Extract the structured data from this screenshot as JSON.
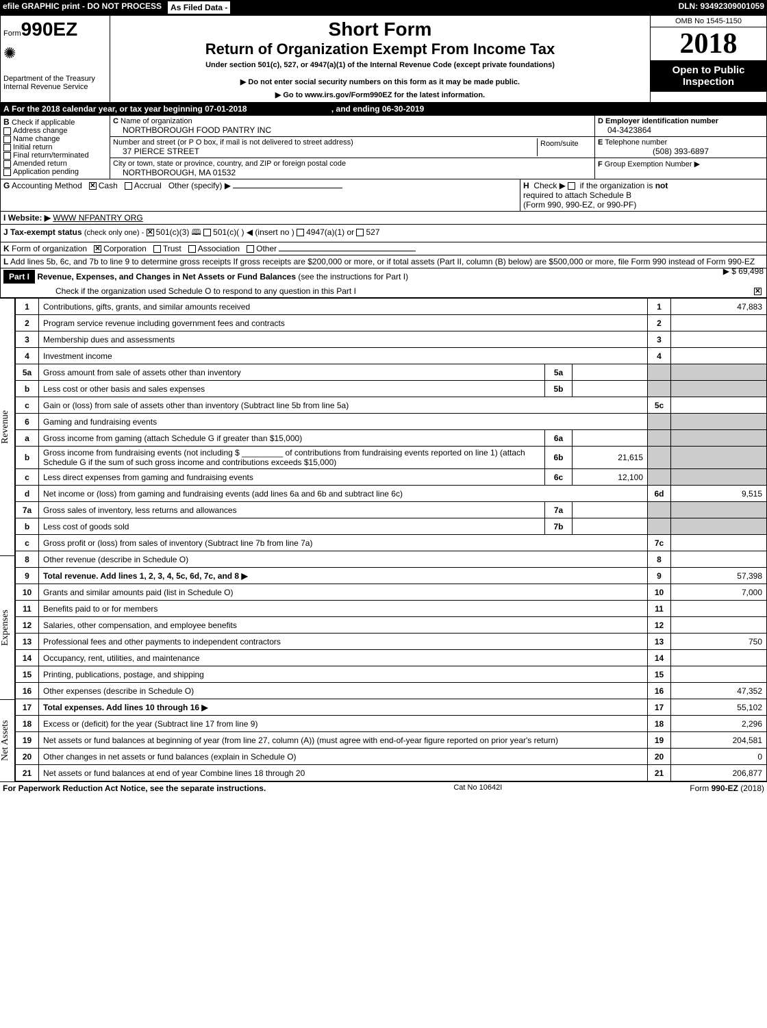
{
  "header": {
    "efile": "efile GRAPHIC print - DO NOT PROCESS",
    "asFiled": "As Filed Data - ",
    "dln": "DLN: 93492309001059",
    "omb": "OMB No 1545-1150",
    "formNo": "990EZ",
    "formPrefix": "Form",
    "shortForm": "Short Form",
    "title": "Return of Organization Exempt From Income Tax",
    "subtitle": "Under section 501(c), 527, or 4947(a)(1) of the Internal Revenue Code (except private foundations)",
    "warn1": "▶ Do not enter social security numbers on this form as it may be made public.",
    "warn2": "▶ Go to www.irs.gov/Form990EZ for the latest information.",
    "dept": "Department of the Treasury",
    "irs": "Internal Revenue Service",
    "year": "2018",
    "open": "Open to Public Inspection"
  },
  "secA": {
    "label": "A",
    "text": "For the 2018 calendar year, or tax year beginning 07-01-2018",
    "ending": ", and ending 06-30-2019"
  },
  "secB": {
    "label": "B",
    "check": "Check if applicable",
    "items": [
      "Address change",
      "Name change",
      "Initial return",
      "Final return/terminated",
      "Amended return",
      "Application pending"
    ]
  },
  "secC": {
    "label": "C",
    "nameLabel": "Name of organization",
    "name": "NORTHBOROUGH FOOD PANTRY INC",
    "streetLabel": "Number and street (or P O box, if mail is not delivered to street address)",
    "roomLabel": "Room/suite",
    "street": "37 PIERCE STREET",
    "cityLabel": "City or town, state or province, country, and ZIP or foreign postal code",
    "city": "NORTHBOROUGH, MA  01532"
  },
  "secD": {
    "label": "D",
    "text": "Employer identification number",
    "value": "04-3423864"
  },
  "secE": {
    "label": "E",
    "text": "Telephone number",
    "value": "(508) 393-6897"
  },
  "secF": {
    "label": "F",
    "text": "Group Exemption Number",
    "arrow": "▶"
  },
  "secG": {
    "label": "G",
    "text": "Accounting Method",
    "cash": "Cash",
    "accrual": "Accrual",
    "other": "Other (specify) ▶"
  },
  "secH": {
    "label": "H",
    "text1": "Check ▶",
    "text2": "if the organization is",
    "not": "not",
    "text3": "required to attach Schedule B",
    "text4": "(Form 990, 990-EZ, or 990-PF)"
  },
  "secI": {
    "label": "I",
    "text": "Website: ▶",
    "value": "WWW NFPANTRY ORG"
  },
  "secJ": {
    "label": "J",
    "text": "Tax-exempt status",
    "note": "(check only one) -",
    "opt1": "501(c)(3)",
    "opt2": "501(c)(  ) ◀ (insert no )",
    "opt3": "4947(a)(1) or",
    "opt4": "527"
  },
  "secK": {
    "label": "K",
    "text": "Form of organization",
    "opts": [
      "Corporation",
      "Trust",
      "Association",
      "Other"
    ]
  },
  "secL": {
    "label": "L",
    "text": "Add lines 5b, 6c, and 7b to line 9 to determine gross receipts  If gross receipts are $200,000 or more, or if total assets (Part II, column (B) below) are $500,000 or more, file Form 990 instead of Form 990-EZ",
    "value": "▶ $ 69,498"
  },
  "part1": {
    "label": "Part I",
    "title": "Revenue, Expenses, and Changes in Net Assets or Fund Balances",
    "note": "(see the instructions for Part I)",
    "check": "Check if the organization used Schedule O to respond to any question in this Part I",
    "checked": "☑"
  },
  "sideLabels": {
    "rev": "Revenue",
    "exp": "Expenses",
    "net": "Net Assets"
  },
  "lines": [
    {
      "n": "1",
      "desc": "Contributions, gifts, grants, and similar amounts received",
      "box": "1",
      "amt": "47,883"
    },
    {
      "n": "2",
      "desc": "Program service revenue including government fees and contracts",
      "box": "2",
      "amt": ""
    },
    {
      "n": "3",
      "desc": "Membership dues and assessments",
      "box": "3",
      "amt": ""
    },
    {
      "n": "4",
      "desc": "Investment income",
      "box": "4",
      "amt": ""
    },
    {
      "n": "5a",
      "desc": "Gross amount from sale of assets other than inventory",
      "ibox": "5a",
      "iamt": ""
    },
    {
      "n": "b",
      "desc": "Less  cost or other basis and sales expenses",
      "ibox": "5b",
      "iamt": ""
    },
    {
      "n": "c",
      "desc": "Gain or (loss) from sale of assets other than inventory (Subtract line 5b from line 5a)",
      "box": "5c",
      "amt": ""
    },
    {
      "n": "6",
      "desc": "Gaming and fundraising events"
    },
    {
      "n": "a",
      "desc": "Gross income from gaming (attach Schedule G if greater than $15,000)",
      "ibox": "6a",
      "iamt": ""
    },
    {
      "n": "b",
      "desc": "Gross income from fundraising events (not including $ _________ of contributions from fundraising events reported on line 1) (attach Schedule G if the sum of such gross income and contributions exceeds $15,000)",
      "ibox": "6b",
      "iamt": "21,615"
    },
    {
      "n": "c",
      "desc": "Less  direct expenses from gaming and fundraising events",
      "ibox": "6c",
      "iamt": "12,100"
    },
    {
      "n": "d",
      "desc": "Net income or (loss) from gaming and fundraising events (add lines 6a and 6b and subtract line 6c)",
      "box": "6d",
      "amt": "9,515"
    },
    {
      "n": "7a",
      "desc": "Gross sales of inventory, less returns and allowances",
      "ibox": "7a",
      "iamt": ""
    },
    {
      "n": "b",
      "desc": "Less  cost of goods sold",
      "ibox": "7b",
      "iamt": ""
    },
    {
      "n": "c",
      "desc": "Gross profit or (loss) from sales of inventory (Subtract line 7b from line 7a)",
      "box": "7c",
      "amt": ""
    },
    {
      "n": "8",
      "desc": "Other revenue (describe in Schedule O)",
      "box": "8",
      "amt": ""
    },
    {
      "n": "9",
      "desc": "Total revenue. Add lines 1, 2, 3, 4, 5c, 6d, 7c, and 8",
      "arrow": "▶",
      "box": "9",
      "amt": "57,398",
      "bold": true
    },
    {
      "n": "10",
      "desc": "Grants and similar amounts paid (list in Schedule O)",
      "box": "10",
      "amt": "7,000"
    },
    {
      "n": "11",
      "desc": "Benefits paid to or for members",
      "box": "11",
      "amt": ""
    },
    {
      "n": "12",
      "desc": "Salaries, other compensation, and employee benefits",
      "box": "12",
      "amt": ""
    },
    {
      "n": "13",
      "desc": "Professional fees and other payments to independent contractors",
      "box": "13",
      "amt": "750"
    },
    {
      "n": "14",
      "desc": "Occupancy, rent, utilities, and maintenance",
      "box": "14",
      "amt": ""
    },
    {
      "n": "15",
      "desc": "Printing, publications, postage, and shipping",
      "box": "15",
      "amt": ""
    },
    {
      "n": "16",
      "desc": "Other expenses (describe in Schedule O)",
      "box": "16",
      "amt": "47,352"
    },
    {
      "n": "17",
      "desc": "Total expenses. Add lines 10 through 16",
      "arrow": "▶",
      "box": "17",
      "amt": "55,102",
      "bold": true
    },
    {
      "n": "18",
      "desc": "Excess or (deficit) for the year (Subtract line 17 from line 9)",
      "box": "18",
      "amt": "2,296"
    },
    {
      "n": "19",
      "desc": "Net assets or fund balances at beginning of year (from line 27, column (A)) (must agree with end-of-year figure reported on prior year's return)",
      "box": "19",
      "amt": "204,581"
    },
    {
      "n": "20",
      "desc": "Other changes in net assets or fund balances (explain in Schedule O)",
      "box": "20",
      "amt": "0"
    },
    {
      "n": "21",
      "desc": "Net assets or fund balances at end of year  Combine lines 18 through 20",
      "box": "21",
      "amt": "206,877"
    }
  ],
  "footer": {
    "left": "For Paperwork Reduction Act Notice, see the separate instructions.",
    "mid": "Cat No 10642I",
    "right": "Form 990-EZ (2018)"
  }
}
